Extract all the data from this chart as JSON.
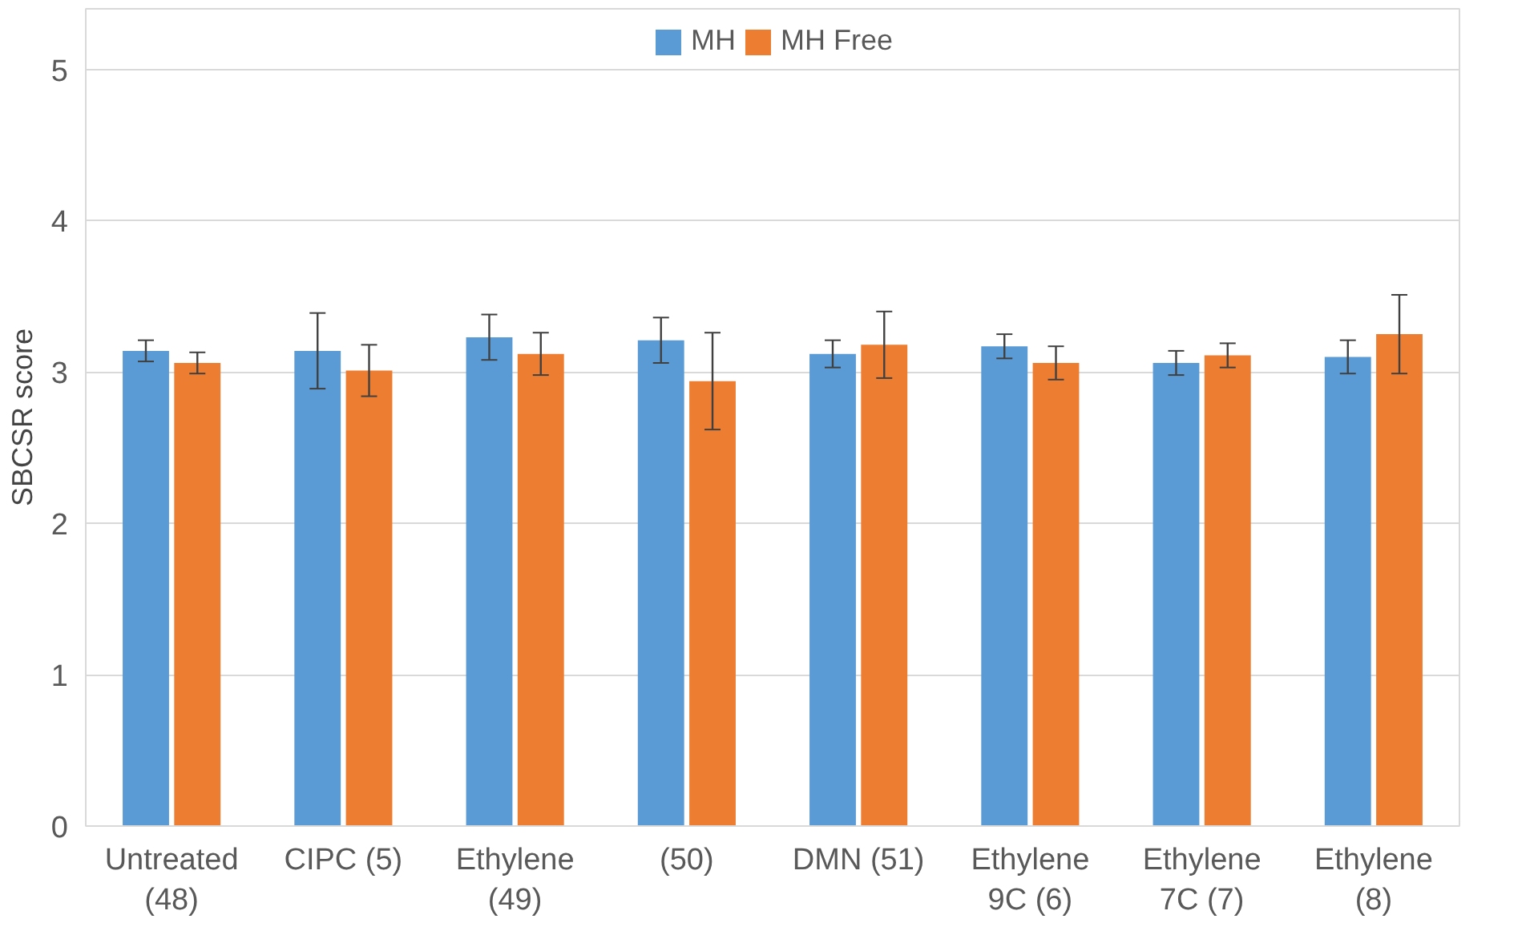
{
  "chart_data": {
    "type": "bar",
    "ylabel": "SBCSR score",
    "categories": [
      "Untreated (48)",
      "CIPC (5)",
      "Ethylene (49)",
      "(50)",
      "DMN (51)",
      "Ethylene 9C (6)",
      "Ethylene 7C (7)",
      "Ethylene (8)"
    ],
    "series": [
      {
        "name": "MH",
        "color": "#5b9bd5",
        "values": [
          3.14,
          3.14,
          3.23,
          3.21,
          3.12,
          3.17,
          3.06,
          3.1
        ],
        "errors": [
          0.07,
          0.25,
          0.15,
          0.15,
          0.09,
          0.08,
          0.08,
          0.11
        ]
      },
      {
        "name": "MH Free",
        "color": "#ed7d31",
        "values": [
          3.06,
          3.01,
          3.12,
          2.94,
          3.18,
          3.06,
          3.11,
          3.25
        ],
        "errors": [
          0.07,
          0.17,
          0.14,
          0.32,
          0.22,
          0.11,
          0.08,
          0.26
        ]
      }
    ],
    "ylim": [
      0,
      5.4
    ],
    "yticks": [
      0,
      1,
      2,
      3,
      4,
      5
    ],
    "grid": "y",
    "legend": "top"
  }
}
